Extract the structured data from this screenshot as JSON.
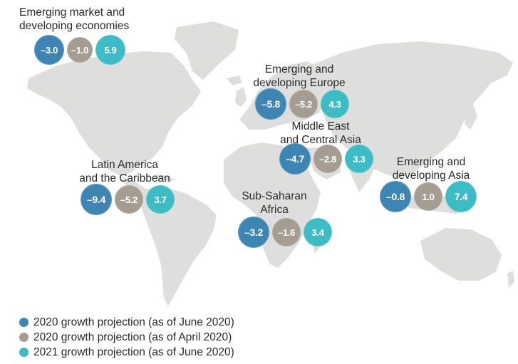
{
  "colors": {
    "june_2020": "#3d86b4",
    "april_2020": "#a59d92",
    "june_2021": "#3cbcc4",
    "land": "#dededd",
    "background": "#ffffff"
  },
  "regions": [
    {
      "id": "emde",
      "label_lines": [
        "Emerging market and",
        "developing economies"
      ],
      "values": [
        "–3.0",
        "–1.0",
        "5.9"
      ]
    },
    {
      "id": "europe",
      "label_lines": [
        "Emerging and",
        "developing Europe"
      ],
      "values": [
        "–5.8",
        "–5.2",
        "4.3"
      ]
    },
    {
      "id": "mideast",
      "label_lines": [
        "Middle East",
        "and Central Asia"
      ],
      "values": [
        "–4.7",
        "–2.8",
        "3.3"
      ]
    },
    {
      "id": "latam",
      "label_lines": [
        "Latin America",
        "and the Caribbean"
      ],
      "values": [
        "–9.4",
        "–5.2",
        "3.7"
      ]
    },
    {
      "id": "ssa",
      "label_lines": [
        "Sub-Saharan",
        "Africa"
      ],
      "values": [
        "–3.2",
        "–1.6",
        "3.4"
      ]
    },
    {
      "id": "asia",
      "label_lines": [
        "Emerging and",
        "developing Asia"
      ],
      "values": [
        "–0.8",
        "1.0",
        "7.4"
      ]
    }
  ],
  "legend": [
    {
      "label": "2020 growth projection (as of June 2020)",
      "color": "#3d86b4"
    },
    {
      "label": "2020 growth projection (as of April 2020)",
      "color": "#a59d92"
    },
    {
      "label": "2021 growth projection (as of June 2020)",
      "color": "#3cbcc4"
    }
  ]
}
